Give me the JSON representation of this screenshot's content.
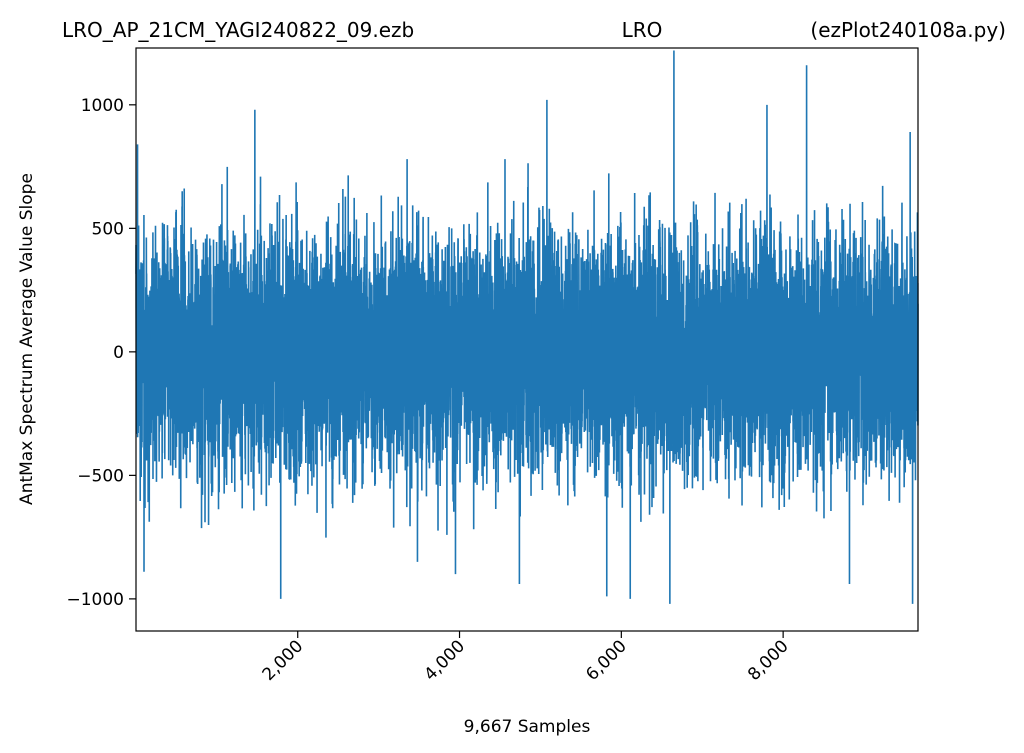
{
  "chart_data": {
    "type": "line",
    "title": {
      "left": "LRO_AP_21CM_YAGI240822_09.ezb",
      "center": "LRO",
      "right": "(ezPlot240108a.py)"
    },
    "xlabel": "9,667 Samples",
    "ylabel": "AntMax Spectrum Average Value Slope",
    "xlim": [
      1,
      9667
    ],
    "ylim": [
      -1130,
      1230
    ],
    "x_ticks": [
      2000,
      4000,
      6000,
      8000
    ],
    "x_tick_labels": [
      "2,000",
      "4,000",
      "6,000",
      "8,000"
    ],
    "y_ticks": [
      -1000,
      -500,
      0,
      500,
      1000
    ],
    "y_tick_labels": [
      "−1000",
      "−500",
      "0",
      "500",
      "1000"
    ],
    "grid": false,
    "series": [
      {
        "color": "#1f77b4",
        "n_samples": 9667,
        "typical_envelope": [
          -500,
          500
        ],
        "peaks": [
          {
            "x": 20,
            "y": 840
          },
          {
            "x": 1470,
            "y": 980
          },
          {
            "x": 3480,
            "y": 940
          },
          {
            "x": 3950,
            "y": 920
          },
          {
            "x": 5080,
            "y": 1020
          },
          {
            "x": 6650,
            "y": 1220
          },
          {
            "x": 7800,
            "y": 1000
          },
          {
            "x": 8290,
            "y": 1160
          },
          {
            "x": 9570,
            "y": 890
          }
        ],
        "troughs": [
          {
            "x": 100,
            "y": -890
          },
          {
            "x": 1790,
            "y": -1000
          },
          {
            "x": 3480,
            "y": -850
          },
          {
            "x": 3950,
            "y": -900
          },
          {
            "x": 4740,
            "y": -940
          },
          {
            "x": 5820,
            "y": -990
          },
          {
            "x": 6110,
            "y": -1000
          },
          {
            "x": 6600,
            "y": -1020
          },
          {
            "x": 8820,
            "y": -940
          },
          {
            "x": 9600,
            "y": -1020
          }
        ]
      }
    ]
  }
}
